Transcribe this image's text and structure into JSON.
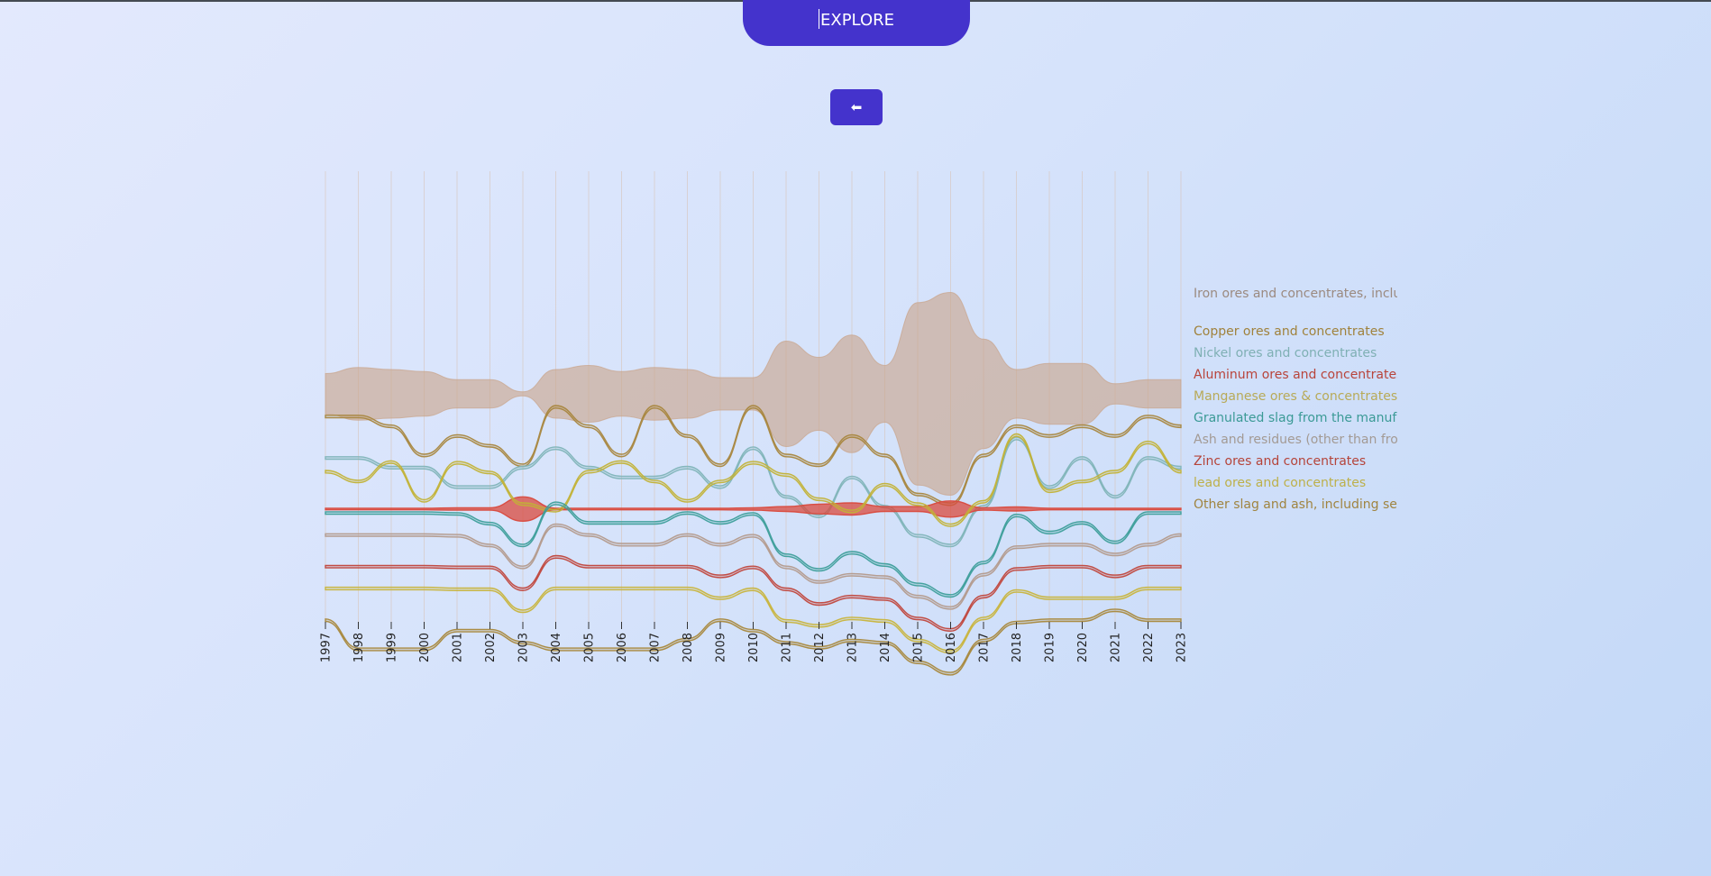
{
  "header": {
    "explore_label": "EXPLORE",
    "back_label": "⬅"
  },
  "chart_data": {
    "type": "area",
    "x": [
      1997,
      1998,
      1999,
      2000,
      2001,
      2002,
      2003,
      2004,
      2005,
      2006,
      2007,
      2008,
      2009,
      2010,
      2011,
      2012,
      2013,
      2014,
      2015,
      2016,
      2017,
      2018,
      2019,
      2020,
      2021,
      2022,
      2023
    ],
    "series": [
      {
        "name": "Iron ores and concentrates, includ",
        "color": "#c9a48a",
        "values": [
          0.5,
          0.65,
          0.6,
          0.55,
          0.35,
          0.35,
          0.05,
          0.6,
          0.7,
          0.55,
          0.65,
          0.6,
          0.4,
          0.4,
          1.3,
          0.9,
          1.45,
          0.7,
          2.25,
          2.5,
          1.35,
          0.6,
          0.75,
          0.75,
          0.25,
          0.35,
          0.35
        ]
      },
      {
        "name": "Copper ores and concentrates",
        "color": "#a8863e",
        "values": [
          0.03,
          0.03,
          0.03,
          0.03,
          0.03,
          0.03,
          0.03,
          0.03,
          0.03,
          0.03,
          0.03,
          0.03,
          0.03,
          0.03,
          0.03,
          0.03,
          0.03,
          0.03,
          0.03,
          0.03,
          0.03,
          0.03,
          0.03,
          0.03,
          0.03,
          0.03,
          0.03
        ]
      },
      {
        "name": "Nickel ores and concentrates",
        "color": "#7fb4b8",
        "values": [
          0.03,
          0.03,
          0.03,
          0.03,
          0.03,
          0.03,
          0.03,
          0.03,
          0.03,
          0.03,
          0.03,
          0.03,
          0.03,
          0.03,
          0.03,
          0.03,
          0.03,
          0.03,
          0.03,
          0.03,
          0.03,
          0.03,
          0.03,
          0.03,
          0.03,
          0.03,
          0.03
        ]
      },
      {
        "name": "Aluminum ores and concentrates",
        "color": "#d94a3e",
        "values": [
          0.02,
          0.02,
          0.02,
          0.02,
          0.03,
          0.03,
          0.3,
          0.02,
          0.02,
          0.02,
          0.02,
          0.02,
          0.02,
          0.03,
          0.06,
          0.12,
          0.15,
          0.06,
          0.06,
          0.2,
          0.03,
          0.05,
          0.02,
          0.02,
          0.02,
          0.02,
          0.02
        ]
      },
      {
        "name": "Manganese ores & concentrates ir",
        "color": "#c2b236",
        "values": [
          0.03,
          0.03,
          0.03,
          0.03,
          0.03,
          0.03,
          0.03,
          0.03,
          0.03,
          0.03,
          0.03,
          0.03,
          0.03,
          0.03,
          0.03,
          0.03,
          0.03,
          0.03,
          0.03,
          0.03,
          0.03,
          0.03,
          0.03,
          0.03,
          0.03,
          0.03,
          0.03
        ]
      },
      {
        "name": "Granulated slag from the manufac",
        "color": "#3d9e9a",
        "values": [
          0.03,
          0.03,
          0.03,
          0.03,
          0.03,
          0.03,
          0.03,
          0.03,
          0.03,
          0.03,
          0.03,
          0.03,
          0.03,
          0.03,
          0.03,
          0.03,
          0.03,
          0.03,
          0.03,
          0.03,
          0.03,
          0.03,
          0.03,
          0.03,
          0.03,
          0.03,
          0.03
        ]
      },
      {
        "name": "Ash and residues (other than from",
        "color": "#b39a8c",
        "values": [
          0.03,
          0.03,
          0.03,
          0.03,
          0.03,
          0.03,
          0.03,
          0.03,
          0.03,
          0.03,
          0.03,
          0.03,
          0.03,
          0.03,
          0.03,
          0.03,
          0.03,
          0.03,
          0.03,
          0.03,
          0.03,
          0.03,
          0.03,
          0.03,
          0.03,
          0.03,
          0.03
        ]
      },
      {
        "name": "Zinc ores and concentrates",
        "color": "#c0463c",
        "values": [
          0.03,
          0.03,
          0.03,
          0.03,
          0.03,
          0.03,
          0.03,
          0.03,
          0.03,
          0.03,
          0.03,
          0.03,
          0.03,
          0.03,
          0.03,
          0.03,
          0.03,
          0.03,
          0.03,
          0.03,
          0.03,
          0.03,
          0.03,
          0.03,
          0.03,
          0.03,
          0.03
        ]
      },
      {
        "name": "lead ores and concentrates",
        "color": "#c8b43c",
        "values": [
          0.03,
          0.03,
          0.03,
          0.03,
          0.03,
          0.03,
          0.03,
          0.03,
          0.03,
          0.03,
          0.03,
          0.03,
          0.03,
          0.03,
          0.03,
          0.03,
          0.03,
          0.03,
          0.03,
          0.03,
          0.03,
          0.03,
          0.03,
          0.03,
          0.03,
          0.03,
          0.03
        ]
      },
      {
        "name": "Other slag and ash, including seav",
        "color": "#a8883c",
        "values": [
          0.03,
          0.03,
          0.03,
          0.03,
          0.03,
          0.03,
          0.03,
          0.03,
          0.03,
          0.03,
          0.03,
          0.03,
          0.03,
          0.03,
          0.03,
          0.03,
          0.03,
          0.03,
          0.03,
          0.03,
          0.03,
          0.03,
          0.03,
          0.03,
          0.03,
          0.03,
          0.03
        ]
      }
    ],
    "legend_placement": "right",
    "grid": true,
    "title": "",
    "xlabel": "",
    "ylabel": ""
  }
}
